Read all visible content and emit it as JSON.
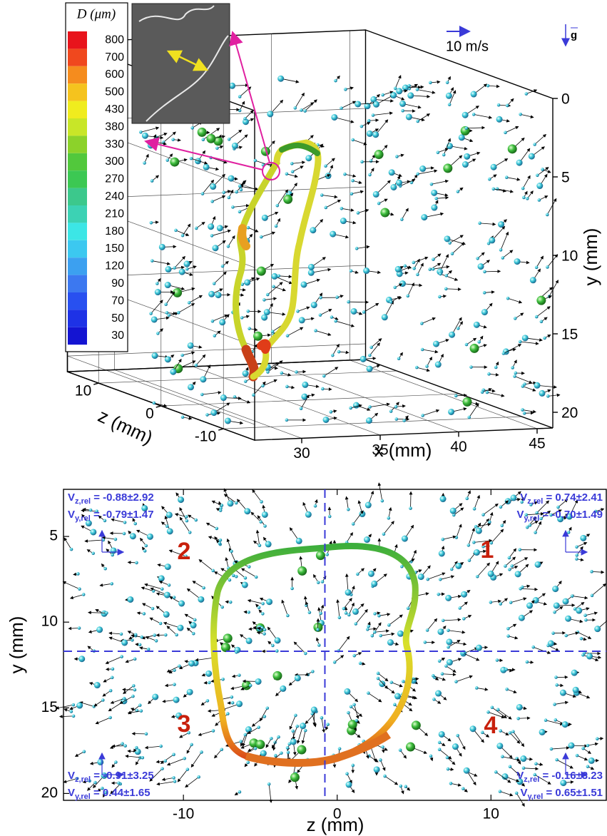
{
  "chart_data": [
    {
      "type": "scatter3d",
      "colorbar": {
        "title": "D (μm)",
        "labels": [
          800,
          700,
          600,
          500,
          430,
          380,
          330,
          300,
          270,
          240,
          210,
          180,
          150,
          120,
          90,
          70,
          50,
          30
        ],
        "colors": [
          "#e8141c",
          "#f0481e",
          "#f58c1e",
          "#f5c31e",
          "#f0ec1e",
          "#c8e628",
          "#8cd22a",
          "#52c83c",
          "#3cc853",
          "#3cc88c",
          "#3cd2b4",
          "#3ce6e6",
          "#3cc8f0",
          "#3ca0f0",
          "#3c78f0",
          "#2850f0",
          "#1e32e6",
          "#1414d2"
        ]
      },
      "xlabel": "x (mm)",
      "ylabel": "y (mm)",
      "zlabel": "z (mm)",
      "xlim": [
        27,
        46
      ],
      "ylim": [
        0,
        21
      ],
      "zlim": [
        -15,
        15
      ],
      "xticks": [
        30,
        35,
        40,
        45
      ],
      "yticks": [
        0,
        5,
        10,
        15,
        20
      ],
      "zticks": [
        -10,
        0,
        10
      ],
      "scale_label": "10 m/s",
      "gravity_label": "g"
    },
    {
      "type": "scatter",
      "xlabel": "z (mm)",
      "ylabel": "y (mm)",
      "xlim": [
        -17.8,
        17.5
      ],
      "ylim": [
        20.4,
        2.25
      ],
      "xticks": [
        -10,
        0,
        10
      ],
      "yticks": [
        5,
        10,
        15,
        20
      ],
      "reference_lines": {
        "z": -0.8,
        "y": 11.7
      },
      "quadrant_labels": [
        "1",
        "2",
        "3",
        "4"
      ],
      "annotations": [
        {
          "corner": "top-left",
          "lines": [
            {
              "symbol": "V",
              "subscript": "z,rel",
              "text": " = -0.88±2.92"
            },
            {
              "symbol": "V",
              "subscript": "y,rel",
              "text": " = -0.79±1.47"
            }
          ]
        },
        {
          "corner": "top-right",
          "lines": [
            {
              "symbol": "V",
              "subscript": "z,rel",
              "text": " = 0.74±2.41"
            },
            {
              "symbol": "V",
              "subscript": "y,rel",
              "text": " = -0.70±1.49"
            }
          ]
        },
        {
          "corner": "bottom-left",
          "lines": [
            {
              "symbol": "V",
              "subscript": "z,rel",
              "text": " = -0.91±3.25"
            },
            {
              "symbol": "V",
              "subscript": "y,rel",
              "text": " = 0.44±1.65"
            }
          ]
        },
        {
          "corner": "bottom-right",
          "lines": [
            {
              "symbol": "V",
              "subscript": "z,rel",
              "text": " = -0.16±3.23"
            },
            {
              "symbol": "V",
              "subscript": "y,rel",
              "text": " = 0.65±1.51"
            }
          ]
        }
      ]
    }
  ]
}
